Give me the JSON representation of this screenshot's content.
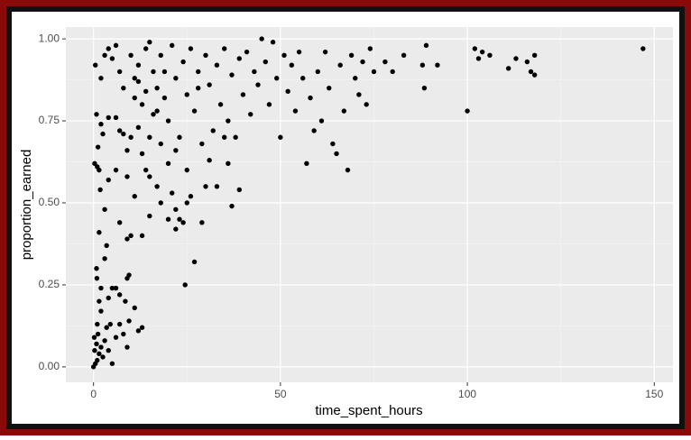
{
  "chart_data": {
    "type": "scatter",
    "x_label": "time_spent_hours",
    "y_label": "proportion_earned",
    "color": "#000000",
    "grid": true,
    "xlim": [
      -7.4,
      155
    ],
    "ylim": [
      -0.047,
      1.036
    ],
    "xticks": [
      0,
      50,
      100,
      150
    ],
    "yticks": [
      {
        "value": 0,
        "label": "0.00"
      },
      0.25,
      {
        "value": 0.5,
        "label": "0.50"
      },
      0.75,
      {
        "value": 1,
        "label": "1.00"
      }
    ],
    "xminor": [
      25,
      75,
      125
    ],
    "yminor": [
      0.125,
      0.375,
      0.625,
      0.875
    ],
    "x": [
      0,
      0.5,
      1,
      0.3,
      0.8,
      1.5,
      0.2,
      1.2,
      2,
      2.5,
      3,
      3.5,
      4,
      5,
      1,
      2,
      1.5,
      4.5,
      6,
      7,
      8,
      9,
      9.5,
      12,
      13,
      11,
      8.5,
      7,
      6,
      5,
      4,
      9,
      9.5,
      2,
      0.8,
      0.9,
      3,
      3.5,
      1.5,
      3,
      7,
      10,
      9,
      13,
      15,
      11,
      1.8,
      4,
      6,
      1,
      0.3,
      1.5,
      1.2,
      2.5,
      2,
      0.8,
      4,
      6,
      7,
      8,
      9,
      10,
      12,
      13,
      14,
      15,
      17,
      21,
      22,
      23,
      22,
      24,
      26,
      27,
      24.5,
      29,
      20,
      18,
      25,
      30,
      33,
      37,
      36,
      39,
      0.5,
      2,
      3,
      4,
      5,
      6,
      7,
      8,
      10,
      11,
      12,
      13,
      14,
      15,
      16,
      17,
      18,
      19,
      20,
      21,
      22,
      23,
      24,
      25,
      26,
      27,
      28,
      29,
      30,
      31,
      32,
      33,
      34,
      35,
      36,
      37,
      38,
      39,
      40,
      41,
      42,
      43,
      44,
      45,
      46,
      47,
      48,
      49,
      50,
      51,
      52,
      53,
      54,
      55,
      56,
      57,
      58,
      59,
      60,
      61,
      62,
      63,
      64,
      65,
      66,
      67,
      68,
      69,
      70,
      71,
      72,
      73,
      74,
      75,
      78,
      80,
      83,
      88,
      88.5,
      89,
      92,
      100,
      102,
      103,
      104,
      106,
      111,
      113,
      116,
      117,
      118,
      118,
      147,
      15,
      17,
      19,
      20,
      22,
      14,
      16,
      18,
      25,
      28,
      31,
      35,
      12,
      9,
      11
    ],
    "values": [
      0,
      0.01,
      0.02,
      0.05,
      0.07,
      0.04,
      0.09,
      0.1,
      0.06,
      0.03,
      0.08,
      0.12,
      0.05,
      0.01,
      0.13,
      0.17,
      0.2,
      0.13,
      0.09,
      0.13,
      0.1,
      0.06,
      0.14,
      0.11,
      0.12,
      0.18,
      0.2,
      0.22,
      0.24,
      0.24,
      0.21,
      0.27,
      0.28,
      0.24,
      0.3,
      0.27,
      0.33,
      0.37,
      0.41,
      0.48,
      0.44,
      0.4,
      0.39,
      0.4,
      0.46,
      0.52,
      0.54,
      0.57,
      0.6,
      0.61,
      0.62,
      0.6,
      0.67,
      0.71,
      0.74,
      0.77,
      0.76,
      0.76,
      0.72,
      0.71,
      0.66,
      0.7,
      0.73,
      0.65,
      0.6,
      0.58,
      0.55,
      0.53,
      0.42,
      0.45,
      0.48,
      0.44,
      0.52,
      0.32,
      0.25,
      0.44,
      0.45,
      0.5,
      0.5,
      0.55,
      0.55,
      0.49,
      0.62,
      0.54,
      0.92,
      0.88,
      0.95,
      0.97,
      0.94,
      0.98,
      0.9,
      0.85,
      0.95,
      0.88,
      0.92,
      0.8,
      0.97,
      0.99,
      0.9,
      0.85,
      0.95,
      0.82,
      0.75,
      0.98,
      0.88,
      0.7,
      0.93,
      0.83,
      0.97,
      0.78,
      0.9,
      0.68,
      0.95,
      0.86,
      0.72,
      0.92,
      0.8,
      0.97,
      0.75,
      0.89,
      0.7,
      0.94,
      0.83,
      0.96,
      0.77,
      0.9,
      0.86,
      1.0,
      0.93,
      0.8,
      0.99,
      0.88,
      0.7,
      0.95,
      0.84,
      0.92,
      0.78,
      0.96,
      0.88,
      0.62,
      0.82,
      0.72,
      0.9,
      0.75,
      0.96,
      0.85,
      0.68,
      0.65,
      0.92,
      0.78,
      0.6,
      0.95,
      0.88,
      0.83,
      0.93,
      0.8,
      0.97,
      0.9,
      0.93,
      0.9,
      0.95,
      0.92,
      0.85,
      0.98,
      0.92,
      0.78,
      0.97,
      0.94,
      0.96,
      0.95,
      0.91,
      0.94,
      0.93,
      0.9,
      0.95,
      0.89,
      0.97,
      0.7,
      0.78,
      0.9,
      0.62,
      0.66,
      0.84,
      0.77,
      0.68,
      0.6,
      0.85,
      0.63,
      0.7,
      0.87,
      0.58,
      0.82
    ]
  }
}
